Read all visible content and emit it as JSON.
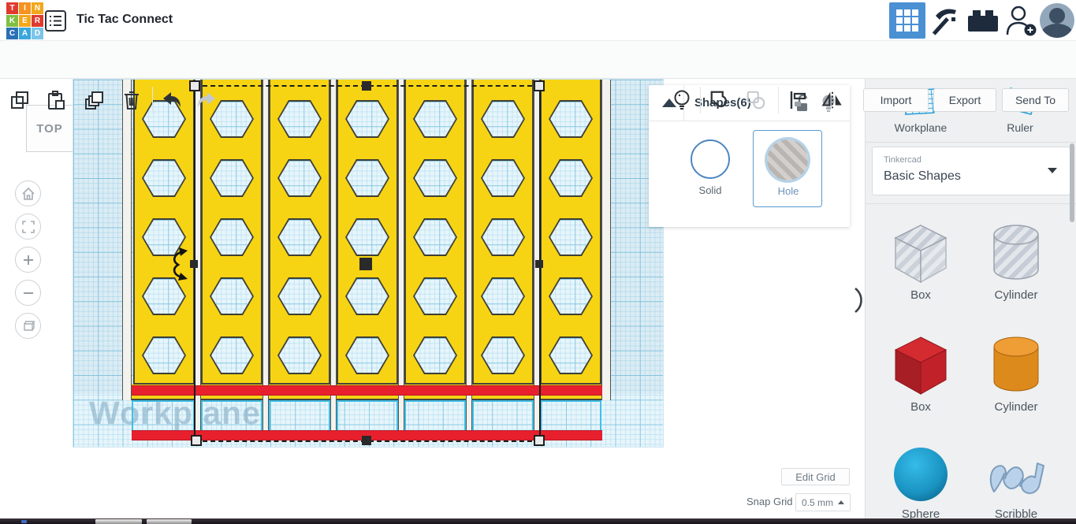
{
  "header": {
    "logo_letters": [
      "T",
      "I",
      "N",
      "K",
      "E",
      "R",
      "C",
      "A",
      "D"
    ],
    "logo_colors": [
      "#e03a2f",
      "#f6921e",
      "#f2a71b",
      "#7fbf42",
      "#f2a71b",
      "#e03a2f",
      "#2b6fb5",
      "#3aa7dc",
      "#7cc5e8"
    ],
    "title": "Tic Tac Connect"
  },
  "toolbar": {
    "left_icons": [
      "copy",
      "paste",
      "duplicate",
      "delete",
      "undo",
      "redo"
    ],
    "right_icons": [
      "show-all",
      "group",
      "ungroup",
      "align",
      "mirror"
    ],
    "import_label": "Import",
    "export_label": "Export",
    "send_to_label": "Send To"
  },
  "viewcube": {
    "label": "TOP"
  },
  "canvas": {
    "watermark": "Workplane",
    "model": {
      "columns": 7,
      "hex_rows_per_column": 5,
      "red_bars": 2,
      "selected_shapes": 6
    }
  },
  "shapes_panel": {
    "title": "Shapes(6)",
    "solid_label": "Solid",
    "hole_label": "Hole",
    "selected_mode": "Hole"
  },
  "grid_controls": {
    "edit_grid_label": "Edit Grid",
    "snap_grid_label": "Snap Grid",
    "snap_value": "0.5 mm"
  },
  "sidebar": {
    "workplane_label": "Workplane",
    "ruler_label": "Ruler",
    "library_kicker": "Tinkercad",
    "library_name": "Basic Shapes",
    "gallery": [
      {
        "label": "Box",
        "kind": "box-transparent"
      },
      {
        "label": "Cylinder",
        "kind": "cylinder-transparent"
      },
      {
        "label": "Box",
        "kind": "box-red"
      },
      {
        "label": "Cylinder",
        "kind": "cylinder-orange"
      },
      {
        "label": "Sphere",
        "kind": "sphere-blue"
      },
      {
        "label": "Scribble",
        "kind": "scribble"
      }
    ]
  },
  "colors": {
    "accent_blue": "#4a90d3",
    "model_yellow": "#f6d414",
    "model_red": "#e8202e",
    "hole_cyan": "#3fc0ea"
  }
}
